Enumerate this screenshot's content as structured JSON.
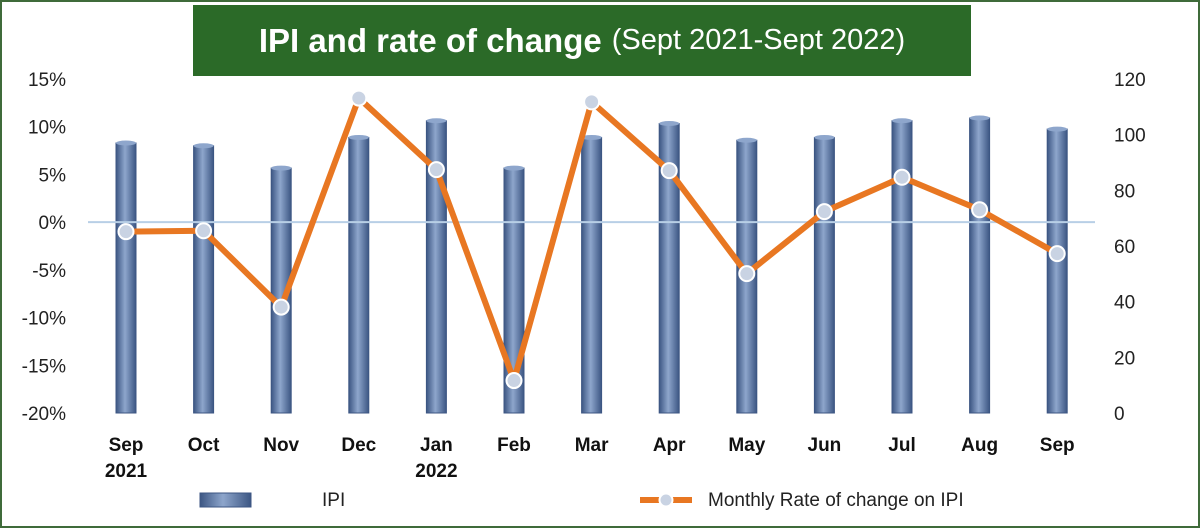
{
  "title": {
    "main": "IPI and rate of change",
    "sub": "(Sept 2021-Sept 2022)"
  },
  "colors": {
    "title_bg": "#2b6a28",
    "bar": "#5b79a8",
    "bar_light": "#8ea6cc",
    "bar_dark": "#3c5683",
    "line": "#e87722",
    "marker_fill": "#c9d3e3",
    "zero_line": "#b8cfe6",
    "frame": "#3f6b3a"
  },
  "chart_data": {
    "type": "bar",
    "categories": [
      [
        "Sep",
        "2021"
      ],
      [
        "Oct",
        ""
      ],
      [
        "Nov",
        ""
      ],
      [
        "Dec",
        ""
      ],
      [
        "Jan",
        "2022"
      ],
      [
        "Feb",
        ""
      ],
      [
        "Mar",
        ""
      ],
      [
        "Apr",
        ""
      ],
      [
        "May",
        ""
      ],
      [
        "Jun",
        ""
      ],
      [
        "Jul",
        ""
      ],
      [
        "Aug",
        ""
      ],
      [
        "Sep",
        ""
      ]
    ],
    "series": [
      {
        "name": "IPI",
        "type": "bar",
        "axis": "right",
        "values": [
          97,
          96,
          88,
          99,
          105,
          88,
          99,
          104,
          98,
          99,
          105,
          106,
          102
        ]
      },
      {
        "name": "Monthly Rate of change on IPI",
        "type": "line",
        "axis": "left",
        "values": [
          -1.0,
          -0.9,
          -8.9,
          13.0,
          5.5,
          -16.6,
          12.6,
          5.4,
          -5.4,
          1.1,
          4.7,
          1.3,
          -3.3
        ]
      }
    ],
    "y_left": {
      "ticks": [
        "15%",
        "10%",
        "5%",
        "0%",
        "-5%",
        "-10%",
        "-15%",
        "-20%"
      ],
      "tick_values": [
        15,
        10,
        5,
        0,
        -5,
        -10,
        -15,
        -20
      ],
      "range": [
        -20,
        15
      ]
    },
    "y_right": {
      "ticks": [
        "120",
        "100",
        "80",
        "60",
        "40",
        "20",
        "0"
      ],
      "tick_values": [
        120,
        100,
        80,
        60,
        40,
        20,
        0
      ],
      "range": [
        0,
        120
      ]
    },
    "legend": [
      {
        "label": "IPI",
        "kind": "bar"
      },
      {
        "label": "Monthly Rate of change on IPI",
        "kind": "line"
      }
    ],
    "legend_position": "bottom",
    "grid": false
  }
}
